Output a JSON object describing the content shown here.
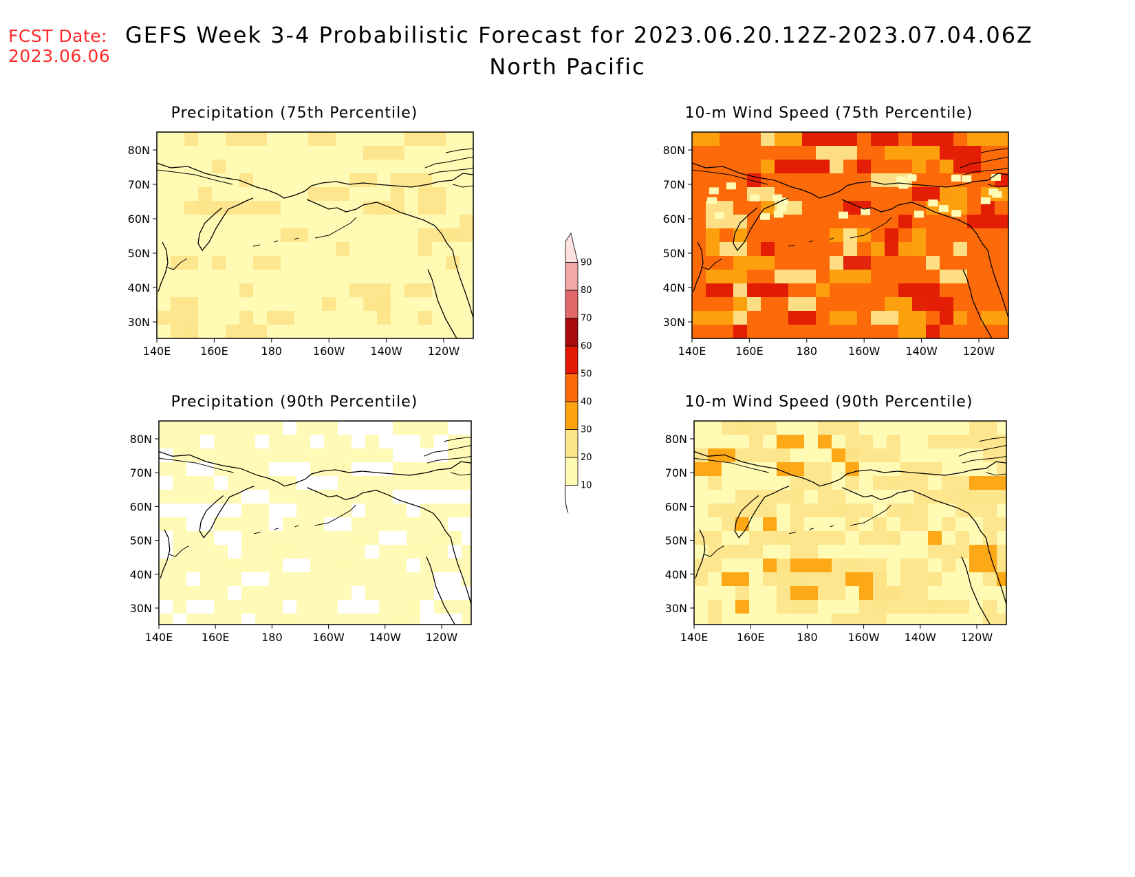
{
  "header": {
    "fcst_label": "FCST Date:",
    "fcst_date": "2023.06.06",
    "title_line1": "GEFS Week 3-4 Probabilistic Forecast for 2023.06.20.12Z-2023.07.04.06Z",
    "title_line2": "North Pacific"
  },
  "panels": [
    {
      "id": "p1",
      "title": "Precipitation (75th Percentile)"
    },
    {
      "id": "p2",
      "title": "10-m Wind Speed (75th Percentile)"
    },
    {
      "id": "p3",
      "title": "Precipitation (90th Percentile)"
    },
    {
      "id": "p4",
      "title": "10-m Wind Speed (90th Percentile)"
    }
  ],
  "axes": {
    "lat_labels": [
      "80N",
      "70N",
      "60N",
      "50N",
      "40N",
      "30N"
    ],
    "lon_labels": [
      "140E",
      "160E",
      "180",
      "160W",
      "140W",
      "120W"
    ]
  },
  "colorbar": {
    "levels": [
      "10",
      "20",
      "30",
      "40",
      "50",
      "60",
      "70",
      "80",
      "90"
    ],
    "colors": [
      "#fffab4",
      "#fde58c",
      "#fda30f",
      "#fd6a0a",
      "#e21a05",
      "#a80b0b",
      "#e06868",
      "#f4a7a7",
      "#fde0e0"
    ]
  }
}
